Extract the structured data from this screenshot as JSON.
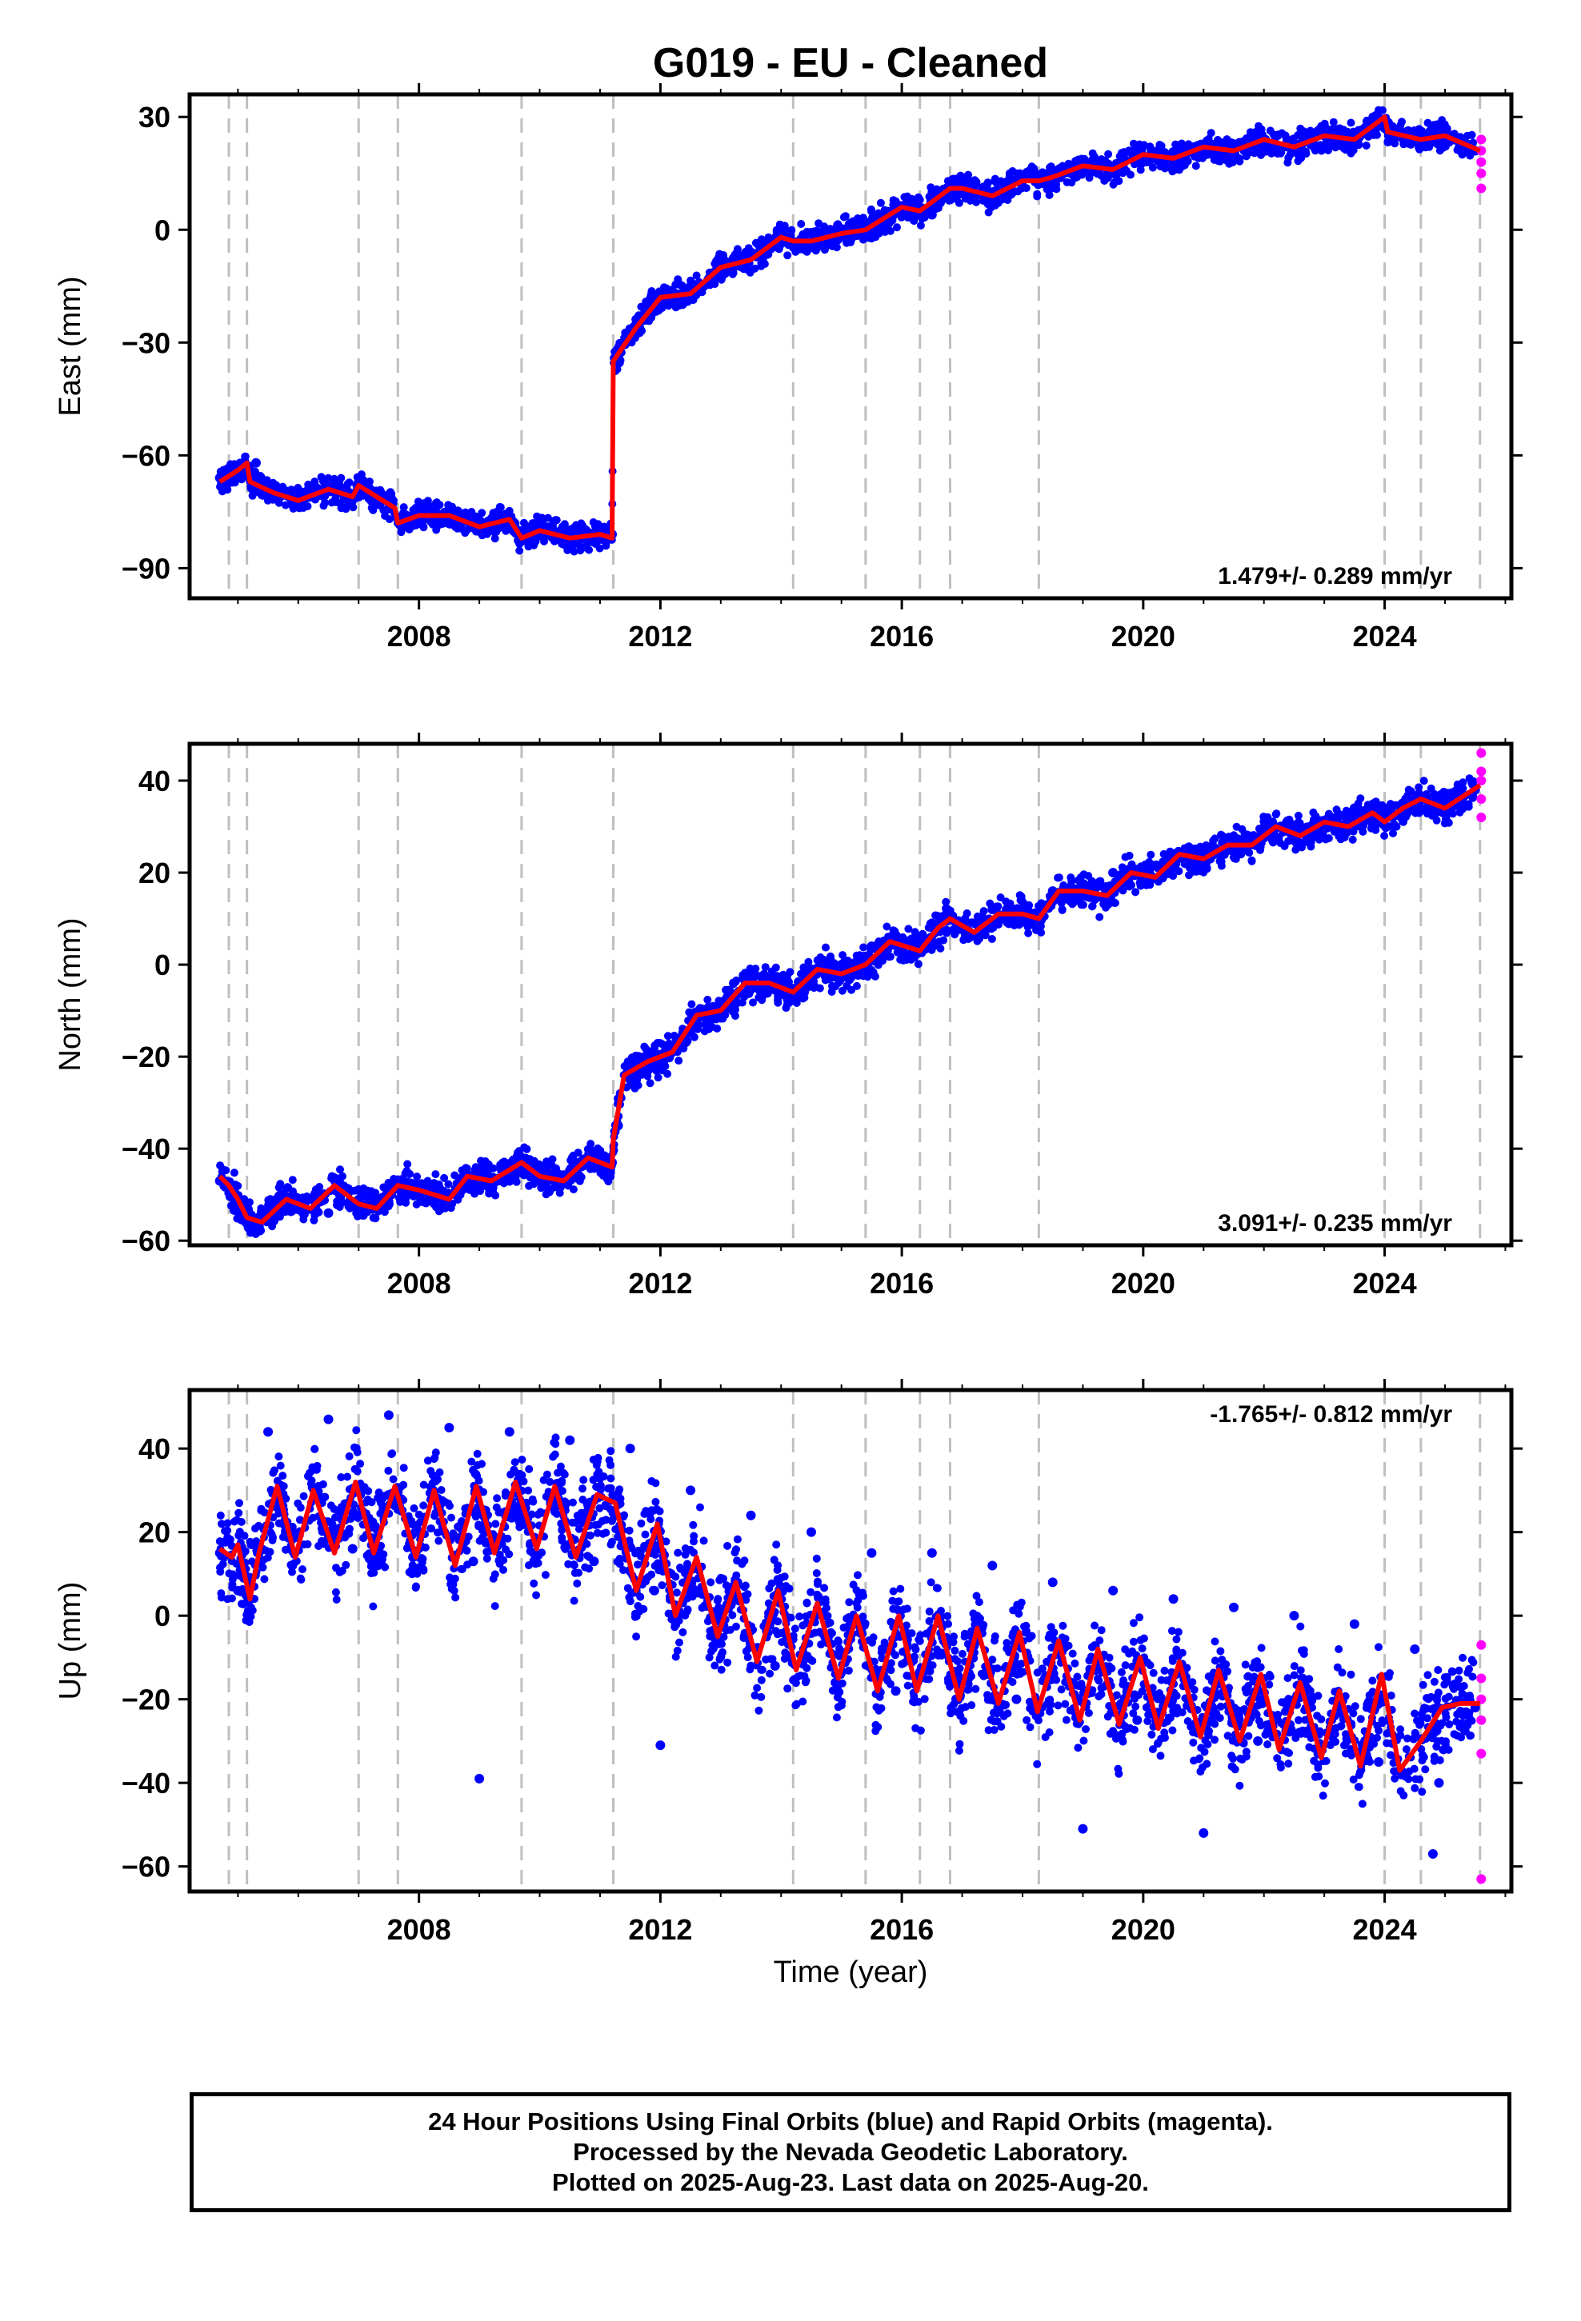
{
  "title": "G019  - EU - Cleaned",
  "xlabel": "Time (year)",
  "caption": {
    "line1": "24 Hour Positions Using Final Orbits (blue) and Rapid Orbits (magenta).",
    "line2": "Processed by the Nevada Geodetic Laboratory.",
    "line3": "Plotted on 2025-Aug-23. Last data on 2025-Aug-20."
  },
  "colors": {
    "final_orbits": "#0000ff",
    "rapid_orbits": "#ff00ff",
    "model_fit": "#ff0000",
    "event_lines": "#bfbfbf",
    "frame": "#000000"
  },
  "chart_data": [
    {
      "type": "scatter",
      "panel": "east",
      "ylabel": "East (mm)",
      "xlim": [
        2004.2,
        2026.1
      ],
      "ylim": [
        -98,
        36
      ],
      "xticks": [
        "2008",
        "2012",
        "2016",
        "2020",
        "2024"
      ],
      "xtick_values": [
        2008,
        2012,
        2016,
        2020,
        2024
      ],
      "yticks": [
        "30",
        "0",
        "−30",
        "−60",
        "−90"
      ],
      "ytick_values": [
        30,
        0,
        -30,
        -60,
        -90
      ],
      "rate_label": "1.479+/- 0.289 mm/yr",
      "rate_position": "bottom-right",
      "event_lines_x": [
        2004.85,
        2005.15,
        2007.0,
        2007.65,
        2009.7,
        2011.22,
        2014.2,
        2015.4,
        2016.3,
        2016.8,
        2018.27,
        2024.0,
        2024.6,
        2025.58
      ],
      "series": [
        {
          "name": "Final Orbits",
          "x": [
            2004.7,
            2005.0,
            2005.3,
            2005.6,
            2006.0,
            2006.5,
            2007.0,
            2007.5,
            2008.0,
            2008.5,
            2009.0,
            2009.5,
            2010.0,
            2010.5,
            2011.0,
            2011.2,
            2011.3,
            2011.6,
            2012.0,
            2012.5,
            2013.0,
            2013.5,
            2014.0,
            2014.5,
            2015.0,
            2015.5,
            2016.0,
            2016.5,
            2017.0,
            2017.5,
            2018.0,
            2018.5,
            2019.0,
            2019.5,
            2020.0,
            2020.5,
            2021.0,
            2021.5,
            2022.0,
            2022.5,
            2023.0,
            2023.5,
            2024.0,
            2024.5,
            2025.0,
            2025.5
          ],
          "y": [
            -66,
            -64,
            -62,
            -69,
            -72,
            -69,
            -71,
            -72,
            -76,
            -76,
            -79,
            -79,
            -81,
            -83,
            -82,
            -81,
            -34,
            -25,
            -18,
            -15,
            -9,
            -6,
            -1,
            -4,
            0,
            1,
            6,
            4,
            10,
            9,
            13,
            13,
            16,
            15,
            18,
            19,
            21,
            20,
            23,
            22,
            25,
            24,
            27,
            25,
            24,
            21
          ]
        },
        {
          "name": "Rapid Orbits",
          "x": [
            2025.6,
            2025.6,
            2025.6,
            2025.6,
            2025.6
          ],
          "y": [
            24,
            21,
            18,
            15,
            11
          ]
        }
      ],
      "model": {
        "name": "Model fit",
        "x": [
          2004.7,
          2005.0,
          2005.15,
          2005.2,
          2005.6,
          2006.0,
          2006.5,
          2006.9,
          2007.0,
          2007.6,
          2007.65,
          2008.0,
          2008.5,
          2009.0,
          2009.5,
          2009.7,
          2010.0,
          2010.5,
          2011.0,
          2011.2,
          2011.22,
          2011.3,
          2011.6,
          2012.0,
          2012.5,
          2013.0,
          2013.5,
          2014.0,
          2014.2,
          2014.5,
          2015.0,
          2015.4,
          2015.5,
          2016.0,
          2016.3,
          2016.8,
          2017.0,
          2017.5,
          2018.0,
          2018.27,
          2018.5,
          2019.0,
          2019.5,
          2020.0,
          2020.5,
          2021.0,
          2021.5,
          2022.0,
          2022.5,
          2023.0,
          2023.5,
          2024.0,
          2024.05,
          2024.6,
          2025.0,
          2025.58
        ],
        "y": [
          -67,
          -64,
          -62,
          -67,
          -70,
          -72,
          -69,
          -71,
          -68,
          -74,
          -78,
          -76,
          -76,
          -79,
          -77,
          -82,
          -80,
          -82,
          -81,
          -82,
          -35,
          -33,
          -26,
          -18,
          -17,
          -10,
          -8,
          -2,
          -3,
          -3,
          -1,
          0,
          1,
          6,
          5,
          11,
          11,
          9,
          13,
          13,
          14,
          17,
          16,
          20,
          19,
          22,
          21,
          24,
          22,
          25,
          24,
          30,
          26,
          24,
          25,
          21
        ]
      }
    },
    {
      "type": "scatter",
      "panel": "north",
      "ylabel": "North (mm)",
      "xlim": [
        2004.2,
        2026.1
      ],
      "ylim": [
        -61,
        48
      ],
      "xticks": [
        "2008",
        "2012",
        "2016",
        "2020",
        "2024"
      ],
      "xtick_values": [
        2008,
        2012,
        2016,
        2020,
        2024
      ],
      "yticks": [
        "40",
        "20",
        "0",
        "−20",
        "−40",
        "−60"
      ],
      "ytick_values": [
        40,
        20,
        0,
        -20,
        -40,
        -60
      ],
      "rate_label": "3.091+/- 0.235 mm/yr",
      "rate_position": "bottom-right",
      "event_lines_x": [
        2004.85,
        2005.15,
        2007.0,
        2007.65,
        2009.7,
        2011.22,
        2014.2,
        2015.4,
        2016.3,
        2016.8,
        2018.27,
        2024.0,
        2024.6,
        2025.58
      ],
      "series": [
        {
          "name": "Final Orbits",
          "x": [
            2004.7,
            2005.0,
            2005.5,
            2006.0,
            2006.5,
            2007.0,
            2007.5,
            2008.0,
            2008.5,
            2009.0,
            2009.5,
            2010.0,
            2010.5,
            2011.0,
            2011.2,
            2011.3,
            2011.6,
            2012.0,
            2012.5,
            2013.0,
            2013.5,
            2014.0,
            2014.5,
            2015.0,
            2015.5,
            2016.0,
            2016.5,
            2017.0,
            2017.5,
            2018.0,
            2018.5,
            2019.0,
            2019.5,
            2020.0,
            2020.5,
            2021.0,
            2021.5,
            2022.0,
            2022.5,
            2023.0,
            2023.5,
            2024.0,
            2024.5,
            2025.0,
            2025.5
          ],
          "y": [
            -47,
            -52,
            -55,
            -51,
            -54,
            -49,
            -52,
            -48,
            -50,
            -46,
            -47,
            -44,
            -46,
            -42,
            -43,
            -35,
            -25,
            -20,
            -12,
            -11,
            -5,
            -4,
            -1,
            0,
            4,
            4,
            9,
            8,
            12,
            12,
            16,
            17,
            20,
            20,
            24,
            25,
            27,
            28,
            30,
            31,
            34,
            34,
            35,
            36,
            38
          ]
        },
        {
          "name": "Rapid Orbits",
          "x": [
            2025.6,
            2025.6,
            2025.6,
            2025.6,
            2025.6
          ],
          "y": [
            46,
            42,
            40,
            36,
            32
          ]
        }
      ],
      "model": {
        "name": "Model fit",
        "x": [
          2004.7,
          2004.85,
          2005.0,
          2005.15,
          2005.4,
          2005.8,
          2006.2,
          2006.6,
          2007.0,
          2007.3,
          2007.65,
          2008.0,
          2008.5,
          2008.8,
          2009.2,
          2009.7,
          2010.0,
          2010.4,
          2010.8,
          2011.2,
          2011.22,
          2011.4,
          2011.8,
          2012.2,
          2012.6,
          2013.0,
          2013.4,
          2013.8,
          2014.2,
          2014.6,
          2015.0,
          2015.4,
          2015.8,
          2016.3,
          2016.6,
          2016.8,
          2017.2,
          2017.6,
          2018.0,
          2018.27,
          2018.6,
          2019.0,
          2019.4,
          2019.8,
          2020.2,
          2020.6,
          2021.0,
          2021.4,
          2021.8,
          2022.2,
          2022.6,
          2023.0,
          2023.4,
          2023.8,
          2024.0,
          2024.3,
          2024.6,
          2025.0,
          2025.58
        ],
        "y": [
          -46,
          -48,
          -51,
          -55,
          -56,
          -51,
          -53,
          -48,
          -52,
          -53,
          -48,
          -49,
          -51,
          -46,
          -47,
          -43,
          -46,
          -47,
          -42,
          -44,
          -38,
          -24,
          -21,
          -19,
          -11,
          -10,
          -4,
          -4,
          -6,
          -1,
          -2,
          0,
          5,
          3,
          8,
          10,
          7,
          11,
          11,
          10,
          16,
          16,
          15,
          20,
          19,
          24,
          23,
          26,
          26,
          30,
          28,
          31,
          30,
          33,
          31,
          34,
          36,
          34,
          39
        ]
      }
    },
    {
      "type": "scatter",
      "panel": "up",
      "ylabel": "Up (mm)",
      "xlim": [
        2004.2,
        2026.1
      ],
      "ylim": [
        -66,
        54
      ],
      "xticks": [
        "2008",
        "2012",
        "2016",
        "2020",
        "2024"
      ],
      "xtick_values": [
        2008,
        2012,
        2016,
        2020,
        2024
      ],
      "yticks": [
        "40",
        "20",
        "0",
        "−20",
        "−40",
        "−60"
      ],
      "ytick_values": [
        40,
        20,
        0,
        -20,
        -40,
        -60
      ],
      "rate_label": "-1.765+/- 0.812 mm/yr",
      "rate_position": "top-right",
      "event_lines_x": [
        2004.85,
        2005.15,
        2007.0,
        2007.65,
        2009.7,
        2011.22,
        2014.2,
        2015.4,
        2016.3,
        2016.8,
        2018.27,
        2024.0,
        2024.6,
        2025.58
      ],
      "series": [
        {
          "name": "Final Orbits",
          "x": [
            2004.7,
            2005.0,
            2005.5,
            2005.9,
            2006.5,
            2006.9,
            2007.5,
            2007.9,
            2008.5,
            2008.9,
            2009.5,
            2009.9,
            2010.5,
            2010.9,
            2011.5,
            2011.9,
            2012.5,
            2012.9,
            2013.5,
            2013.9,
            2014.5,
            2014.9,
            2015.5,
            2015.9,
            2016.5,
            2016.9,
            2017.5,
            2017.9,
            2018.5,
            2018.9,
            2019.5,
            2019.9,
            2020.5,
            2020.9,
            2021.5,
            2021.9,
            2022.5,
            2022.9,
            2023.5,
            2023.9,
            2024.5,
            2024.9,
            2025.5,
            2009.0,
            2012.0,
            2019.0,
            2021.0,
            2024.8
          ],
          "y": [
            15,
            6,
            44,
            12,
            47,
            16,
            48,
            14,
            45,
            13,
            44,
            15,
            42,
            13,
            40,
            6,
            30,
            -5,
            24,
            -12,
            20,
            -16,
            15,
            -18,
            15,
            -20,
            12,
            -20,
            8,
            -24,
            6,
            -25,
            4,
            -28,
            2,
            -30,
            0,
            -33,
            -2,
            -35,
            -8,
            -40,
            -22,
            -39,
            -31,
            -51,
            -52,
            -57
          ]
        },
        {
          "name": "Rapid Orbits",
          "x": [
            2025.6,
            2025.6,
            2025.6,
            2025.6,
            2025.6,
            2025.6
          ],
          "y": [
            -7,
            -15,
            -20,
            -25,
            -33,
            -63
          ]
        }
      ],
      "model": {
        "name": "Model fit",
        "x": [
          2004.7,
          2004.9,
          2005.0,
          2005.2,
          2005.35,
          2005.65,
          2005.95,
          2006.25,
          2006.6,
          2006.95,
          2007.25,
          2007.6,
          2007.95,
          2008.25,
          2008.6,
          2008.95,
          2009.25,
          2009.6,
          2009.95,
          2010.25,
          2010.6,
          2010.95,
          2011.25,
          2011.6,
          2011.95,
          2012.25,
          2012.6,
          2012.95,
          2013.25,
          2013.6,
          2013.95,
          2014.25,
          2014.6,
          2014.95,
          2015.25,
          2015.6,
          2015.95,
          2016.25,
          2016.6,
          2016.95,
          2017.25,
          2017.6,
          2017.95,
          2018.25,
          2018.6,
          2018.95,
          2019.25,
          2019.6,
          2019.95,
          2020.25,
          2020.6,
          2020.95,
          2021.25,
          2021.6,
          2021.95,
          2022.25,
          2022.6,
          2022.95,
          2023.25,
          2023.6,
          2023.95,
          2024.25,
          2024.6,
          2024.95,
          2025.25,
          2025.58
        ],
        "y": [
          16,
          14,
          17,
          4,
          15,
          31,
          14,
          30,
          15,
          32,
          15,
          31,
          14,
          30,
          12,
          31,
          15,
          32,
          16,
          31,
          14,
          29,
          27,
          6,
          22,
          0,
          14,
          -5,
          8,
          -11,
          6,
          -13,
          3,
          -15,
          0,
          -18,
          0,
          -18,
          0,
          -20,
          -3,
          -21,
          -4,
          -23,
          -6,
          -25,
          -8,
          -26,
          -10,
          -27,
          -11,
          -29,
          -13,
          -30,
          -14,
          -32,
          -16,
          -34,
          -18,
          -36,
          -14,
          -37,
          -30,
          -22,
          -21,
          -21
        ]
      }
    }
  ]
}
